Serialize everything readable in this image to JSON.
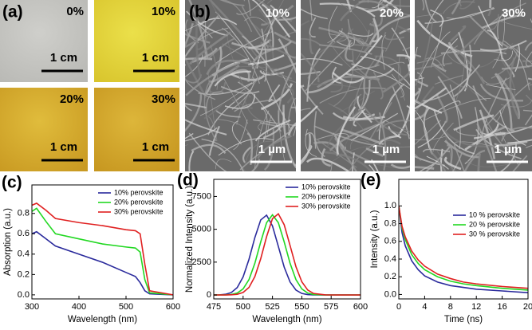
{
  "photo_panel": {
    "label": "(a)",
    "photos": [
      {
        "label": "0%",
        "scale": "1 cm"
      },
      {
        "label": "10%",
        "scale": "1 cm"
      },
      {
        "label": "20%",
        "scale": "1 cm"
      },
      {
        "label": "30%",
        "scale": "1 cm"
      }
    ]
  },
  "sem_panel": {
    "label": "(b)",
    "images": [
      {
        "label": "10%",
        "scale": "1 µm"
      },
      {
        "label": "20%",
        "scale": "1 µm"
      },
      {
        "label": "30%",
        "scale": "1 µm"
      }
    ]
  },
  "chart_data": [
    {
      "type": "line",
      "label": "(c)",
      "x_label": "Wavelength (nm)",
      "y_label": "Absorption (a.u.)",
      "x": [
        300,
        310,
        330,
        350,
        400,
        450,
        500,
        520,
        530,
        540,
        550,
        600
      ],
      "xlim": [
        300,
        600
      ],
      "xticks": [
        300,
        400,
        500,
        600
      ],
      "ylim": [
        -0.04,
        1.08
      ],
      "yticks": [
        {
          "value": 0,
          "label": "0.0"
        },
        {
          "value": 0.2,
          "label": "0.2"
        },
        {
          "value": 0.4,
          "label": "0.4"
        },
        {
          "value": 0.6,
          "label": "0.6"
        },
        {
          "value": 0.8,
          "label": "0.8"
        }
      ],
      "legend": "upper right",
      "series": [
        {
          "name": "10% perovskite",
          "color": "#2a2a9c",
          "values": [
            0.6,
            0.62,
            0.55,
            0.48,
            0.4,
            0.32,
            0.22,
            0.18,
            0.12,
            0.04,
            0.01,
            0.0
          ]
        },
        {
          "name": "20% perovskite",
          "color": "#22d822",
          "values": [
            0.82,
            0.85,
            0.72,
            0.6,
            0.55,
            0.5,
            0.47,
            0.46,
            0.42,
            0.15,
            0.02,
            0.0
          ]
        },
        {
          "name": "30% perovskite",
          "color": "#e02020",
          "values": [
            0.88,
            0.9,
            0.83,
            0.75,
            0.71,
            0.68,
            0.64,
            0.63,
            0.6,
            0.3,
            0.04,
            0.0
          ]
        }
      ]
    },
    {
      "type": "line",
      "label": "(d)",
      "x_label": "Wavelength (nm)",
      "y_label": "Normalized Intensity (a.u.)",
      "x": [
        475,
        480,
        485,
        490,
        495,
        500,
        505,
        510,
        515,
        520,
        525,
        530,
        535,
        540,
        545,
        550,
        555,
        560,
        570,
        580,
        590,
        600
      ],
      "xlim": [
        475,
        600
      ],
      "xticks": [
        475,
        500,
        525,
        550,
        575,
        600
      ],
      "ylim": [
        -300,
        8800
      ],
      "yticks": [
        0,
        2500,
        5000,
        7500
      ],
      "legend": "upper right",
      "series": [
        {
          "name": "10% perovskite",
          "color": "#2a2a9c",
          "values": [
            2,
            11,
            51,
            188,
            565,
            1373,
            2713,
            4366,
            5710,
            6075,
            5257,
            3700,
            2118,
            987,
            374,
            115,
            29,
            6,
            0,
            0,
            0,
            0
          ]
        },
        {
          "name": "20% perovskite",
          "color": "#22d822",
          "values": [
            0,
            0,
            8,
            39,
            148,
            462,
            1171,
            2410,
            4036,
            5500,
            6100,
            5500,
            4036,
            2410,
            1171,
            462,
            148,
            39,
            0,
            0,
            0,
            0
          ]
        },
        {
          "name": "30% perovskite",
          "color": "#e02020",
          "values": [
            0,
            0,
            2,
            12,
            52,
            192,
            574,
            1396,
            2757,
            4438,
            5804,
            6174,
            5343,
            3761,
            2152,
            1003,
            380,
            117,
            6,
            0,
            0,
            0
          ]
        }
      ]
    },
    {
      "type": "line",
      "label": "(e)",
      "x_label": "Time (ns)",
      "y_label": "Intensity (a.u.)",
      "x": [
        0,
        0.5,
        1,
        2,
        3,
        4,
        6,
        8,
        10,
        12,
        16,
        20
      ],
      "xlim": [
        0,
        20
      ],
      "xticks": [
        0,
        4,
        8,
        12,
        16,
        20
      ],
      "ylim": [
        -0.05,
        1.3
      ],
      "yticks": [
        {
          "value": 0,
          "label": "0.0"
        },
        {
          "value": 0.2,
          "label": "0.2"
        },
        {
          "value": 0.4,
          "label": "0.4"
        },
        {
          "value": 0.6,
          "label": "0.6"
        },
        {
          "value": 0.8,
          "label": "0.8"
        },
        {
          "value": 1,
          "label": "1.0"
        }
      ],
      "legend": "center right",
      "series": [
        {
          "name": "10 % perovskite",
          "color": "#2a2a9c",
          "values": [
            1.0,
            0.7,
            0.55,
            0.38,
            0.28,
            0.21,
            0.14,
            0.1,
            0.08,
            0.06,
            0.04,
            0.02
          ]
        },
        {
          "name": "20 % perovskite",
          "color": "#22d822",
          "values": [
            1.0,
            0.75,
            0.62,
            0.45,
            0.35,
            0.28,
            0.2,
            0.15,
            0.12,
            0.1,
            0.07,
            0.05
          ]
        },
        {
          "name": "30 % perovskite",
          "color": "#e02020",
          "values": [
            1.0,
            0.77,
            0.65,
            0.49,
            0.39,
            0.32,
            0.23,
            0.18,
            0.14,
            0.12,
            0.09,
            0.07
          ]
        }
      ]
    }
  ]
}
